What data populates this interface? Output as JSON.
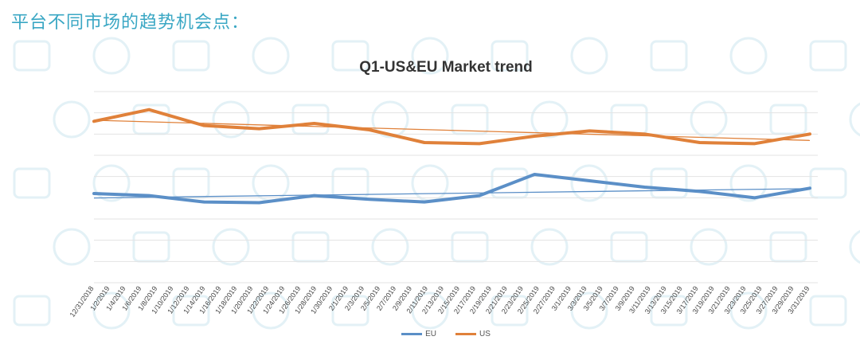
{
  "heading": "平台不同市场的趋势机会点：",
  "chart_data": {
    "type": "line",
    "title": "Q1-US&EU Market trend",
    "xlabel": "",
    "ylabel": "",
    "grid": true,
    "y_tick_labels_shown": false,
    "legend_position": "bottom",
    "categories": [
      "12/31/2018",
      "1/2/2019",
      "1/4/2019",
      "1/6/2019",
      "1/8/2019",
      "1/10/2019",
      "1/12/2019",
      "1/14/2019",
      "1/16/2019",
      "1/18/2019",
      "1/20/2019",
      "1/22/2019",
      "1/24/2019",
      "1/26/2019",
      "1/28/2019",
      "1/30/2019",
      "2/1/2019",
      "2/3/2019",
      "2/5/2019",
      "2/7/2019",
      "2/9/2019",
      "2/11/2019",
      "2/13/2019",
      "2/15/2019",
      "2/17/2019",
      "2/19/2019",
      "2/21/2019",
      "2/23/2019",
      "2/25/2019",
      "2/27/2019",
      "3/1/2019",
      "3/3/2019",
      "3/5/2019",
      "3/7/2019",
      "3/9/2019",
      "3/11/2019",
      "3/13/2019",
      "3/15/2019",
      "3/17/2019",
      "3/19/2019",
      "3/21/2019",
      "3/23/2019",
      "3/25/2019",
      "3/27/2019",
      "3/29/2019",
      "3/31/2019"
    ],
    "series": [
      {
        "name": "EU",
        "color": "#5b8fc7",
        "points": [
          [
            0,
            5.2
          ],
          [
            3,
            5.1
          ],
          [
            6,
            4.8
          ],
          [
            9,
            4.77
          ],
          [
            12,
            5.1
          ],
          [
            15,
            4.93
          ],
          [
            18,
            4.8
          ],
          [
            21,
            5.1
          ],
          [
            24,
            6.1
          ],
          [
            27,
            5.8
          ],
          [
            30,
            5.5
          ],
          [
            33,
            5.3
          ],
          [
            36,
            5.0
          ],
          [
            39,
            5.45
          ]
        ],
        "trendline": [
          4.99,
          5.43
        ]
      },
      {
        "name": "US",
        "color": "#e0813a",
        "points": [
          [
            0,
            8.6
          ],
          [
            3,
            9.15
          ],
          [
            6,
            8.4
          ],
          [
            9,
            8.25
          ],
          [
            12,
            8.5
          ],
          [
            15,
            8.2
          ],
          [
            18,
            7.6
          ],
          [
            21,
            7.55
          ],
          [
            24,
            7.9
          ],
          [
            27,
            8.15
          ],
          [
            30,
            8.0
          ],
          [
            33,
            7.6
          ],
          [
            36,
            7.55
          ],
          [
            39,
            8.0
          ]
        ],
        "trendline": [
          8.65,
          7.7
        ]
      }
    ],
    "ylim": [
      1,
      10
    ]
  }
}
